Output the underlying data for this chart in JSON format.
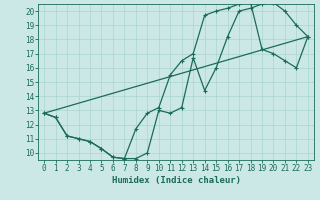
{
  "title": "",
  "xlabel": "Humidex (Indice chaleur)",
  "bg_color": "#cce8e6",
  "line_color": "#1a6b5a",
  "grid_color": "#aad4d0",
  "xlim": [
    -0.5,
    23.5
  ],
  "ylim": [
    9.5,
    20.5
  ],
  "xticks": [
    0,
    1,
    2,
    3,
    4,
    5,
    6,
    7,
    8,
    9,
    10,
    11,
    12,
    13,
    14,
    15,
    16,
    17,
    18,
    19,
    20,
    21,
    22,
    23
  ],
  "yticks": [
    10,
    11,
    12,
    13,
    14,
    15,
    16,
    17,
    18,
    19,
    20
  ],
  "line1_x": [
    0,
    1,
    2,
    3,
    4,
    5,
    6,
    7,
    8,
    9,
    10,
    11,
    12,
    13,
    14,
    15,
    16,
    17,
    18,
    19,
    20,
    21,
    22,
    23
  ],
  "line1_y": [
    12.8,
    12.5,
    11.2,
    11.0,
    10.8,
    10.3,
    9.7,
    9.6,
    9.6,
    10.0,
    13.0,
    12.8,
    13.2,
    16.7,
    14.4,
    16.0,
    18.2,
    20.0,
    20.2,
    20.5,
    20.6,
    20.0,
    19.0,
    18.2
  ],
  "line2_x": [
    0,
    1,
    2,
    3,
    4,
    5,
    6,
    7,
    8,
    9,
    10,
    11,
    12,
    13,
    14,
    15,
    16,
    17,
    18,
    19,
    20,
    21,
    22,
    23
  ],
  "line2_y": [
    12.8,
    12.5,
    11.2,
    11.0,
    10.8,
    10.3,
    9.7,
    9.6,
    11.7,
    12.8,
    13.2,
    15.5,
    16.5,
    17.0,
    19.7,
    20.0,
    20.2,
    20.5,
    20.6,
    17.3,
    17.0,
    16.5,
    16.0,
    18.2
  ],
  "line3_x": [
    0,
    23
  ],
  "line3_y": [
    12.8,
    18.2
  ],
  "marker_size": 2.5,
  "linewidth": 0.9
}
